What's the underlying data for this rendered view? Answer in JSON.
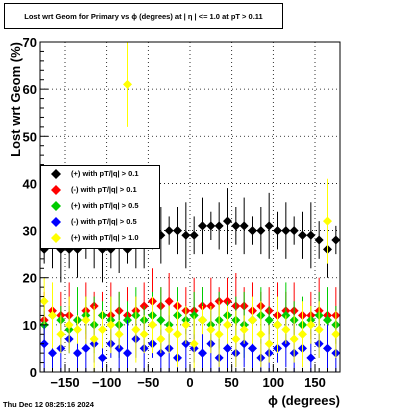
{
  "title": "Lost wrt Geom for Primary vs ϕ (degrees) at | η | <= 1.0 at pT > 0.11",
  "timestamp": "Thu Dec 12 08:25:16 2024",
  "chart_data": {
    "type": "scatter",
    "xlabel": "ϕ (degrees)",
    "ylabel": "Lost wrt Geom (%)",
    "xlim": [
      -180,
      180
    ],
    "ylim": [
      0,
      70
    ],
    "xticks": [
      -150,
      -100,
      -50,
      0,
      50,
      100,
      150
    ],
    "xtick_labels": [
      "−150",
      "−100",
      "−50",
      "0",
      "50",
      "100",
      "150"
    ],
    "yticks": [
      0,
      10,
      20,
      30,
      40,
      50,
      60,
      70
    ],
    "grid": true,
    "legend_position": "left",
    "series": [
      {
        "name": "(+) with pT/|q| > 0.1",
        "color": "#000000",
        "x": [
          -175,
          -165,
          -155,
          -145,
          -135,
          -125,
          -115,
          -105,
          -95,
          -85,
          -75,
          -65,
          -55,
          -45,
          -35,
          -25,
          -15,
          -5,
          5,
          15,
          25,
          35,
          45,
          55,
          65,
          75,
          85,
          95,
          105,
          115,
          125,
          135,
          145,
          155,
          165,
          175
        ],
        "y": [
          26,
          27,
          26,
          26,
          26,
          27,
          27,
          26,
          26,
          27,
          26,
          27,
          29,
          30,
          29,
          30,
          30,
          29,
          29,
          31,
          31,
          31,
          32,
          31,
          31,
          30,
          30,
          31,
          30,
          30,
          30,
          29,
          29,
          28,
          26,
          28
        ]
      },
      {
        "name": "(-) with pT/|q| > 0.1",
        "color": "#ff0000",
        "x": [
          -175,
          -165,
          -155,
          -145,
          -135,
          -125,
          -115,
          -105,
          -95,
          -85,
          -75,
          -65,
          -55,
          -45,
          -35,
          -25,
          -15,
          -5,
          5,
          15,
          25,
          35,
          45,
          55,
          65,
          75,
          85,
          95,
          105,
          115,
          125,
          135,
          145,
          155,
          165,
          175
        ],
        "y": [
          11,
          13,
          12,
          12,
          11,
          13,
          14,
          12,
          12,
          13,
          12,
          13,
          14,
          15,
          14,
          15,
          14,
          13,
          13,
          14,
          14,
          15,
          15,
          14,
          14,
          13,
          14,
          13,
          12,
          13,
          13,
          12,
          12,
          13,
          12,
          12
        ]
      },
      {
        "name": "(+) with pT/|q| > 0.5",
        "color": "#00cc00",
        "x": [
          -175,
          -165,
          -155,
          -145,
          -135,
          -125,
          -115,
          -105,
          -95,
          -85,
          -75,
          -65,
          -55,
          -45,
          -35,
          -25,
          -15,
          -5,
          5,
          15,
          25,
          35,
          45,
          55,
          65,
          75,
          85,
          95,
          105,
          115,
          125,
          135,
          145,
          155,
          165,
          175
        ],
        "y": [
          10,
          12,
          11,
          9,
          11,
          12,
          10,
          12,
          11,
          10,
          11,
          12,
          11,
          12,
          11,
          10,
          12,
          11,
          12,
          11,
          10,
          11,
          12,
          11,
          10,
          11,
          12,
          11,
          10,
          12,
          11,
          10,
          11,
          12,
          11,
          10
        ]
      },
      {
        "name": "(-) with pT/|q| > 0.5",
        "color": "#0000ff",
        "x": [
          -175,
          -165,
          -155,
          -145,
          -135,
          -125,
          -115,
          -105,
          -95,
          -85,
          -75,
          -65,
          -55,
          -45,
          -35,
          -25,
          -15,
          -5,
          5,
          15,
          25,
          35,
          45,
          55,
          65,
          75,
          85,
          95,
          105,
          115,
          125,
          135,
          145,
          155,
          165,
          175
        ],
        "y": [
          6,
          4,
          5,
          7,
          4,
          5,
          6,
          3,
          6,
          5,
          4,
          7,
          5,
          6,
          4,
          5,
          3,
          6,
          5,
          4,
          6,
          3,
          5,
          4,
          6,
          5,
          3,
          4,
          5,
          6,
          4,
          5,
          3,
          6,
          5,
          4
        ]
      },
      {
        "name": "(+) with pT/|q| > 1.0",
        "color": "#ffff00",
        "x": [
          -175,
          -165,
          -155,
          -145,
          -135,
          -125,
          -115,
          -105,
          -95,
          -85,
          -75,
          -65,
          -55,
          -45,
          -35,
          -25,
          -15,
          -5,
          5,
          15,
          25,
          35,
          45,
          55,
          65,
          75,
          85,
          95,
          105,
          115,
          125,
          135,
          145,
          155,
          165,
          175
        ],
        "y": [
          15,
          12,
          8,
          10,
          9,
          11,
          7,
          9,
          10,
          8,
          61,
          9,
          8,
          10,
          7,
          9,
          8,
          10,
          6,
          11,
          9,
          8,
          10,
          7,
          9,
          11,
          8,
          6,
          10,
          9,
          7,
          8,
          10,
          9,
          32,
          8
        ]
      }
    ]
  }
}
